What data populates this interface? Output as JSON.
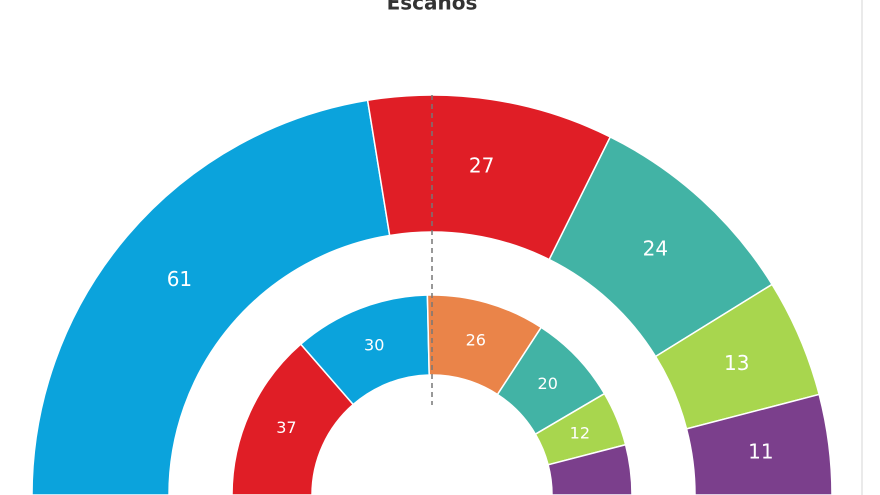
{
  "chart_data": {
    "type": "half-donut",
    "title": "Escaños",
    "rings": [
      {
        "values": [
          61,
          27,
          24,
          13,
          11
        ],
        "value_labels": [
          "61",
          "27",
          "24",
          "13",
          "11"
        ],
        "colors": [
          "#0ba3dc",
          "#e01e26",
          "#42b3a5",
          "#a8d64e",
          "#7b3f8c"
        ]
      },
      {
        "values": [
          37,
          30,
          26,
          20,
          12,
          11
        ],
        "value_labels": [
          "37",
          "30",
          "26",
          "20",
          "12",
          null
        ],
        "colors": [
          "#e01e26",
          "#0ba3dc",
          "#ea8449",
          "#42b3a5",
          "#a8d64e",
          "#7b3f8c"
        ]
      }
    ]
  }
}
